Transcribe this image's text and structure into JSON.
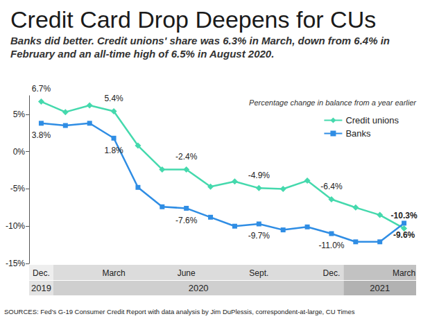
{
  "chart_data": {
    "type": "line",
    "title": "Credit Card Drop Deepens for CUs",
    "subtitle": "Banks did better. Credit unions' share was 6.3% in March, down from 6.4% in February and an all-time high of 6.5% in August 2020.",
    "note": "Percentage change in balance from a year earlier",
    "source": "SOURCES: Fed's G-19 Consumer Credit Report with data analysis by Jim DuPlessis, correspondent-at-large, CU Times",
    "categories": [
      "Dec.",
      null,
      null,
      "March",
      null,
      null,
      "June",
      null,
      null,
      "Sept.",
      null,
      null,
      "Dec.",
      null,
      null,
      "March"
    ],
    "category_years": [
      "2019",
      "2020",
      "2020",
      "2020",
      "2020",
      "2020",
      "2020",
      "2020",
      "2020",
      "2020",
      "2020",
      "2020",
      "2020",
      "2021",
      "2021",
      "2021"
    ],
    "series": [
      {
        "name": "Credit unions",
        "color": "#45d9ad",
        "marker": "diamond",
        "values": [
          6.7,
          5.3,
          6.2,
          5.4,
          0.8,
          -2.4,
          -2.4,
          -4.7,
          -4.0,
          -4.9,
          -5.0,
          -3.9,
          -6.4,
          -7.5,
          -8.5,
          -10.3
        ],
        "value_labels": [
          "6.7%",
          null,
          null,
          "5.4%",
          null,
          null,
          "-2.4%",
          null,
          null,
          "-4.9%",
          null,
          null,
          "-6.4%",
          null,
          null,
          "-10.3%"
        ]
      },
      {
        "name": "Banks",
        "color": "#2f8de4",
        "marker": "square",
        "values": [
          3.8,
          3.5,
          3.8,
          1.8,
          -4.8,
          -7.4,
          -7.6,
          -8.8,
          -10.0,
          -9.7,
          -10.5,
          -10.1,
          -11.0,
          -12.1,
          -12.1,
          -9.6
        ],
        "value_labels": [
          "3.8%",
          null,
          null,
          "1.8%",
          null,
          null,
          "-7.6%",
          null,
          null,
          "-9.7%",
          null,
          null,
          "-11.0%",
          null,
          null,
          "-9.6%"
        ]
      }
    ],
    "ylim": [
      -15,
      7.5
    ],
    "yticks": [
      {
        "value": -15,
        "label": "-15%"
      },
      {
        "value": -10,
        "label": "-10%"
      },
      {
        "value": -5,
        "label": "-5%"
      },
      {
        "value": 0,
        "label": "0%"
      },
      {
        "value": 5,
        "label": "5%"
      }
    ],
    "grid": false,
    "legend": "upper right",
    "data_labels": true
  }
}
